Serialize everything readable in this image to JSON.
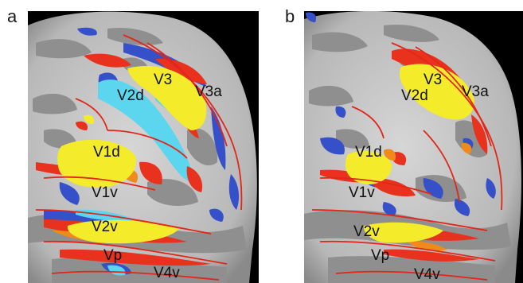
{
  "figure": {
    "panels": [
      {
        "letter": "a",
        "labels": {
          "v3": "V3",
          "v3a": "V3a",
          "v2d": "V2d",
          "v1d": "V1d",
          "v1v": "V1v",
          "v2v": "V2v",
          "vp": "Vp",
          "v4v": "V4v"
        }
      },
      {
        "letter": "b",
        "labels": {
          "v3": "V3",
          "v3a": "V3a",
          "v2d": "V2d",
          "v1d": "V1d",
          "v1v": "V1v",
          "v2v": "V2v",
          "vp": "Vp",
          "v4v": "V4v"
        }
      }
    ]
  },
  "colors": {
    "cortex_light": "#c9c9c9",
    "cortex_dark": "#8d8d8d",
    "activation_yellow": "#f4ec2a",
    "activation_red": "#e8321e",
    "activation_orange": "#f08a1c",
    "activation_blue": "#3550c8",
    "activation_cyan": "#5cd6ee",
    "boundary_line": "#e2261a",
    "background": "#000000"
  }
}
